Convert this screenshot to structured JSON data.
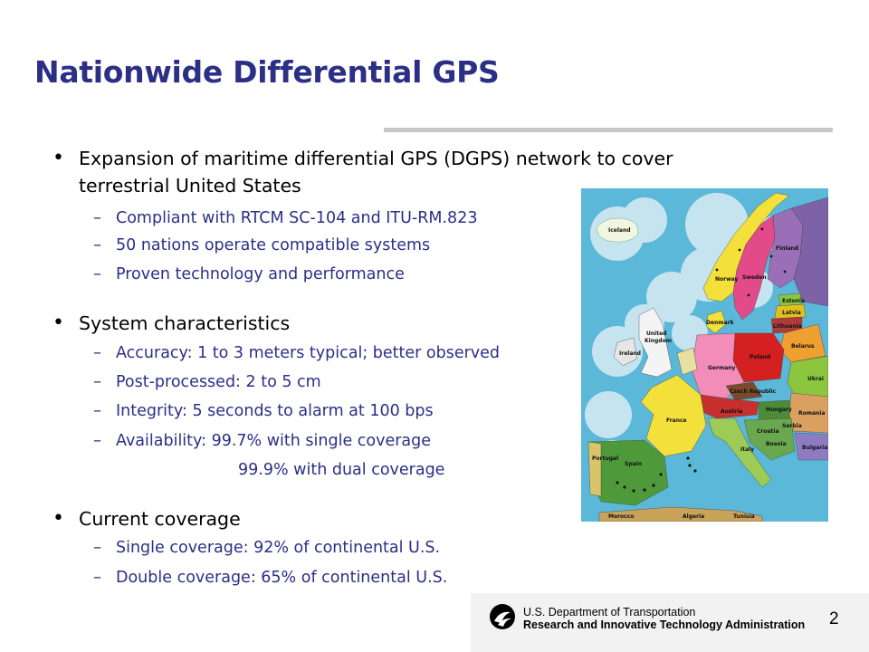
{
  "slide": {
    "title": "Nationwide Differential GPS",
    "page_number": "2"
  },
  "bullets": [
    {
      "text_line1": "Expansion of maritime differential GPS (DGPS) network to cover",
      "text_line2": "terrestrial United States",
      "sub": [
        "Compliant with RTCM SC-104 and ITU-RM.823",
        "50 nations operate compatible systems",
        "Proven technology and performance"
      ]
    },
    {
      "text_line1": "System characteristics",
      "sub": [
        "Accuracy: 1 to 3 meters typical; better observed",
        "Post-processed:  2 to 5 cm",
        "Integrity: 5 seconds to alarm at 100 bps",
        "Availability:  99.7% with single coverage"
      ],
      "continuation": "99.9% with dual coverage"
    },
    {
      "text_line1": "Current coverage",
      "sub": [
        "Single coverage:  92% of continental U.S.",
        "Double coverage:  65% of continental U.S."
      ]
    }
  ],
  "map": {
    "countries": [
      "Iceland",
      "Norway",
      "Sweden",
      "Finland",
      "Estonia",
      "Latvia",
      "Lithuania",
      "Belarus",
      "Ukraine",
      "Ireland",
      "United Kingdom",
      "Denmark",
      "Germany",
      "Poland",
      "France",
      "Czech Republic",
      "Austria",
      "Hungary",
      "Romania",
      "Croatia",
      "Bosnia",
      "Serbia",
      "Bulgaria",
      "Italy",
      "Portugal",
      "Spain",
      "Morocco",
      "Algeria",
      "Tunisia"
    ]
  },
  "footer": {
    "department": "U.S. Department of Transportation",
    "administration": "Research and Innovative Technology Administration"
  },
  "colors": {
    "title": "#2b2f86",
    "sub_text": "#2b2f86",
    "rule": "#c8c8c8",
    "sea": "#5bb8d9"
  }
}
